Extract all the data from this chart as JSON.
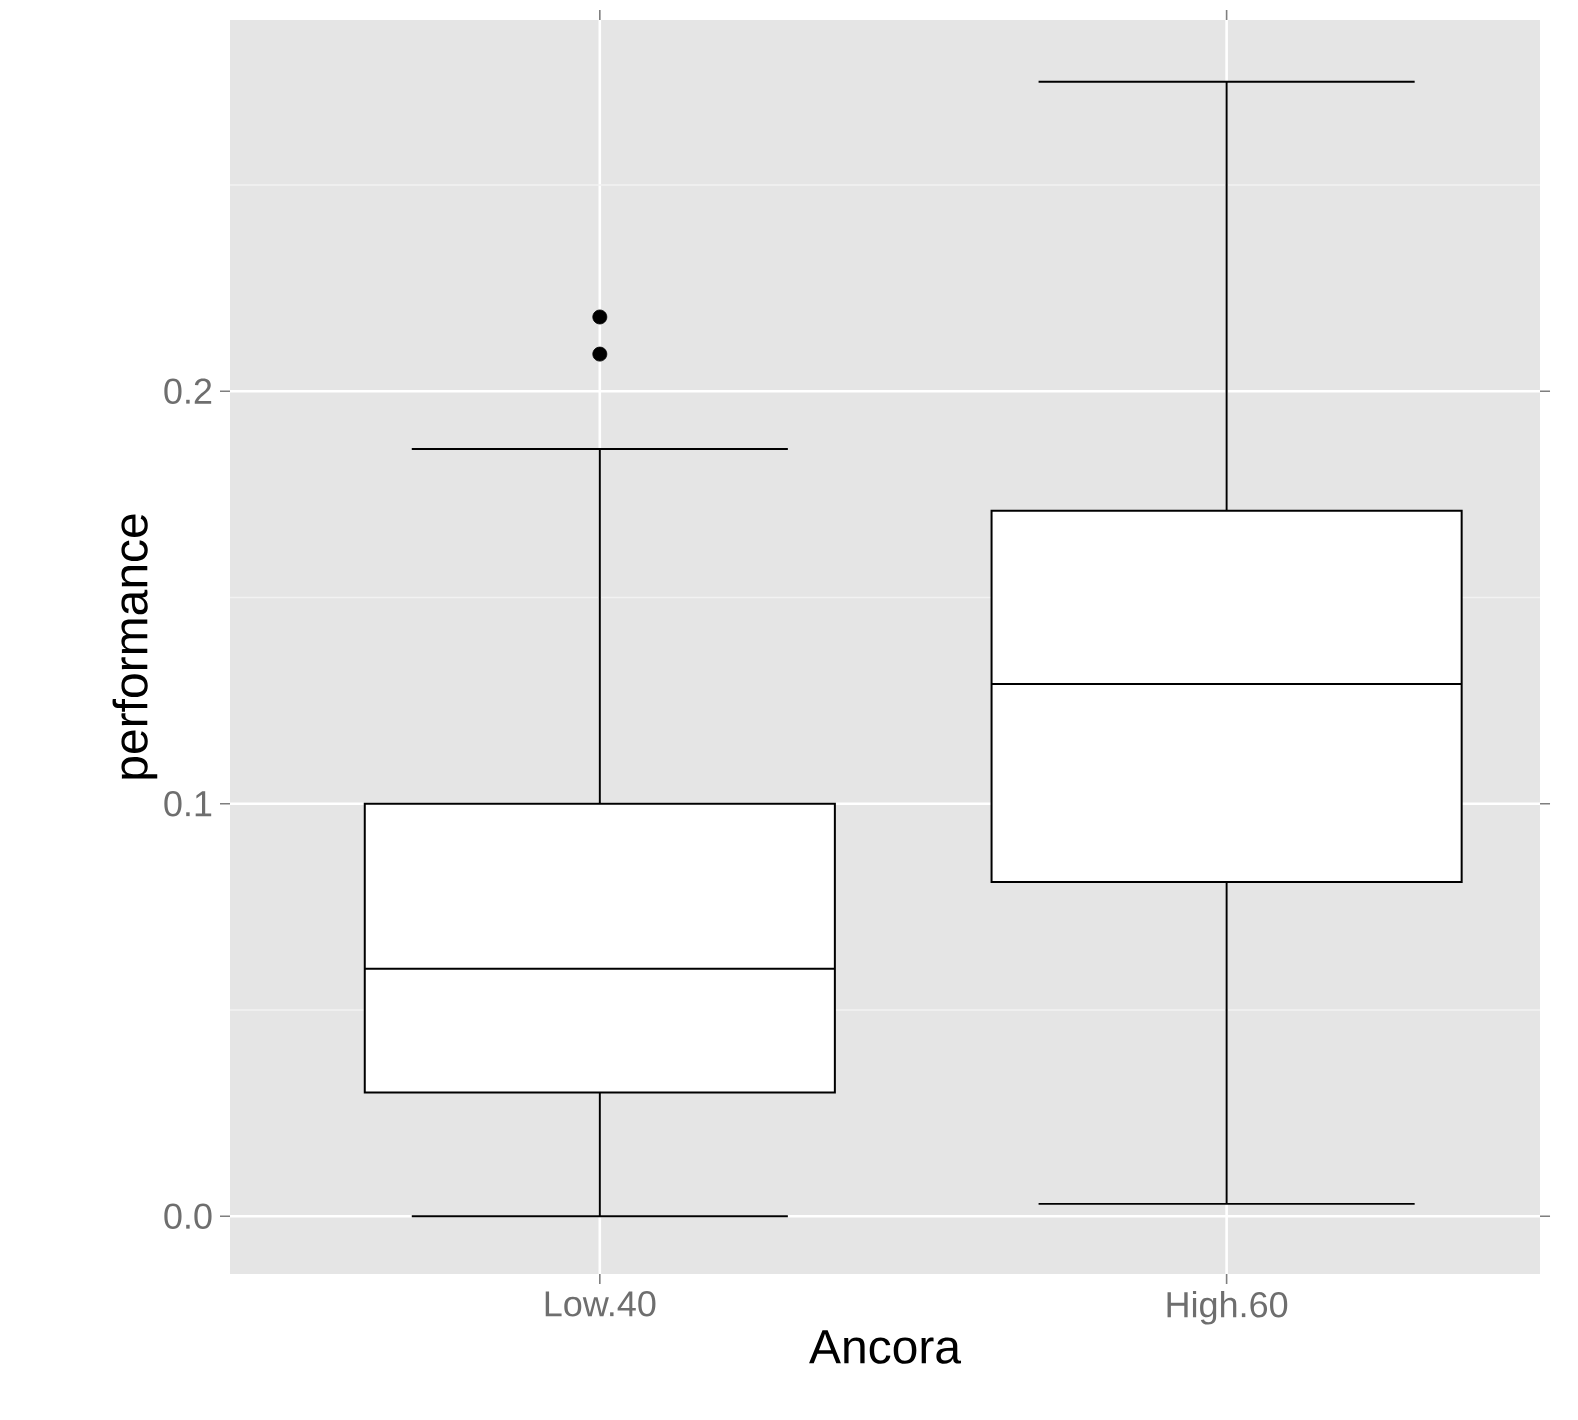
{
  "chart_data": {
    "type": "box",
    "xlabel": "Ancora",
    "ylabel": "performance",
    "categories": [
      "Low.40",
      "High.60"
    ],
    "boxes": [
      {
        "low": 0.0,
        "q1": 0.03,
        "median": 0.06,
        "q3": 0.1,
        "high": 0.186,
        "outliers": [
          0.209,
          0.218
        ]
      },
      {
        "low": 0.003,
        "q1": 0.081,
        "median": 0.129,
        "q3": 0.171,
        "high": 0.275
      }
    ],
    "ylim": [
      -0.014,
      0.29
    ],
    "yticks": [
      {
        "value": 0,
        "label": "0.0"
      },
      0.1,
      0.2
    ],
    "grid": true
  }
}
